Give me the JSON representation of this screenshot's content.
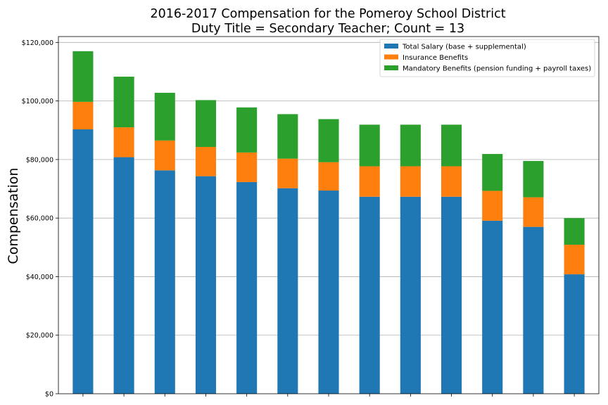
{
  "chart_data": {
    "type": "bar",
    "stacked": true,
    "title_line1": "2016-2017 Compensation for the Pomeroy School District",
    "title_line2": "Duty Title = Secondary Teacher; Count = 13",
    "xlabel": "",
    "ylabel": "Compensation",
    "ylim": [
      0,
      122000
    ],
    "yticks": [
      0,
      20000,
      40000,
      60000,
      80000,
      100000,
      120000
    ],
    "ytick_labels": [
      "$0",
      "$20,000",
      "$40,000",
      "$60,000",
      "$80,000",
      "$100,000",
      "$120,000"
    ],
    "grid": "horizontal",
    "legend_position": "top-right",
    "categories": [
      "",
      "",
      "",
      "",
      "",
      "",
      "",
      "",
      "",
      "",
      "",
      "",
      ""
    ],
    "series": [
      {
        "name": "Total Salary (base + supplemental)",
        "color": "#1f77b4",
        "values": [
          90300,
          80800,
          76300,
          74300,
          72300,
          70200,
          69400,
          67300,
          67300,
          67300,
          59100,
          57000,
          40800
        ]
      },
      {
        "name": "Insurance Benefits",
        "color": "#ff7f0e",
        "values": [
          9400,
          10200,
          10200,
          10000,
          10100,
          10100,
          9700,
          10400,
          10400,
          10400,
          10200,
          10100,
          10100
        ]
      },
      {
        "name": "Mandatory Benefits (pension funding + payroll taxes)",
        "color": "#2ca02c",
        "values": [
          17300,
          17300,
          16300,
          16000,
          15400,
          15200,
          14700,
          14200,
          14200,
          14200,
          12600,
          12400,
          9100
        ]
      }
    ]
  }
}
